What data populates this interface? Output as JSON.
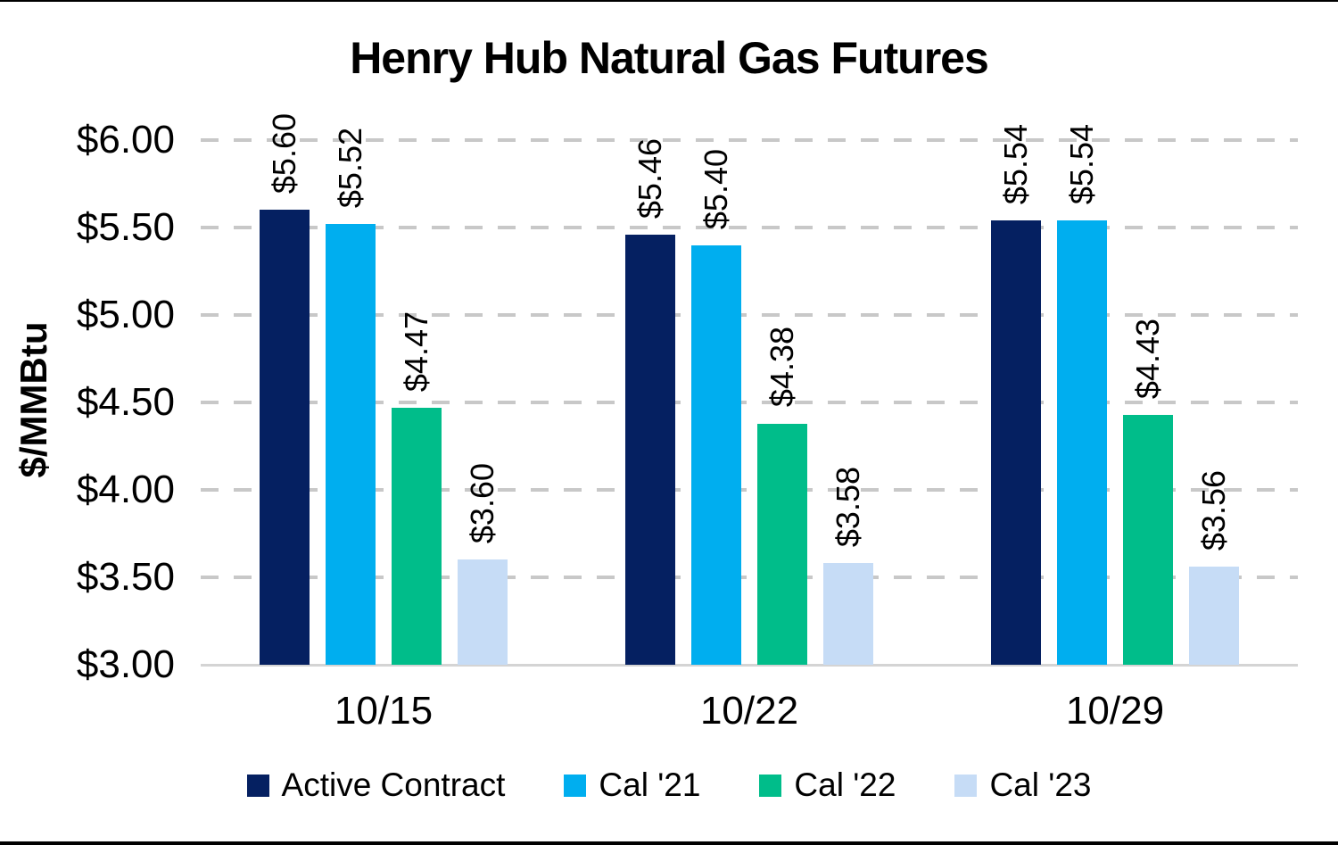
{
  "chart_data": {
    "type": "bar",
    "title": "Henry Hub Natural Gas Futures",
    "xlabel": "",
    "ylabel": "$/MMBtu",
    "ylim": [
      3.0,
      6.0
    ],
    "ytick_step": 0.5,
    "yticks": [
      6.0,
      5.5,
      5.0,
      4.5,
      4.0,
      3.5,
      3.0
    ],
    "ytick_labels": [
      "$6.00",
      "$5.50",
      "$5.00",
      "$4.50",
      "$4.00",
      "$3.50",
      "$3.00"
    ],
    "categories": [
      "10/15",
      "10/22",
      "10/29"
    ],
    "series": [
      {
        "name": "Active Contract",
        "color": "#052061",
        "values": [
          5.6,
          5.46,
          5.54
        ],
        "labels": [
          "$5.60",
          "$5.46",
          "$5.54"
        ]
      },
      {
        "name": "Cal '21",
        "color": "#00aeef",
        "values": [
          5.52,
          5.4,
          5.54
        ],
        "labels": [
          "$5.52",
          "$5.40",
          "$5.54"
        ]
      },
      {
        "name": "Cal '22",
        "color": "#00bd8a",
        "values": [
          4.47,
          4.38,
          4.43
        ],
        "labels": [
          "$4.47",
          "$4.38",
          "$4.43"
        ]
      },
      {
        "name": "Cal '23",
        "color": "#c6dcf6",
        "values": [
          3.6,
          3.58,
          3.56
        ],
        "labels": [
          "$3.60",
          "$3.58",
          "$3.56"
        ]
      }
    ],
    "grid": "horizontal-dashed",
    "gridline_color": "#c8c8c8",
    "baseline_color": "#d4d4d4",
    "legend_position": "bottom",
    "data_label_rotation": "vertical-bottom-to-top"
  }
}
